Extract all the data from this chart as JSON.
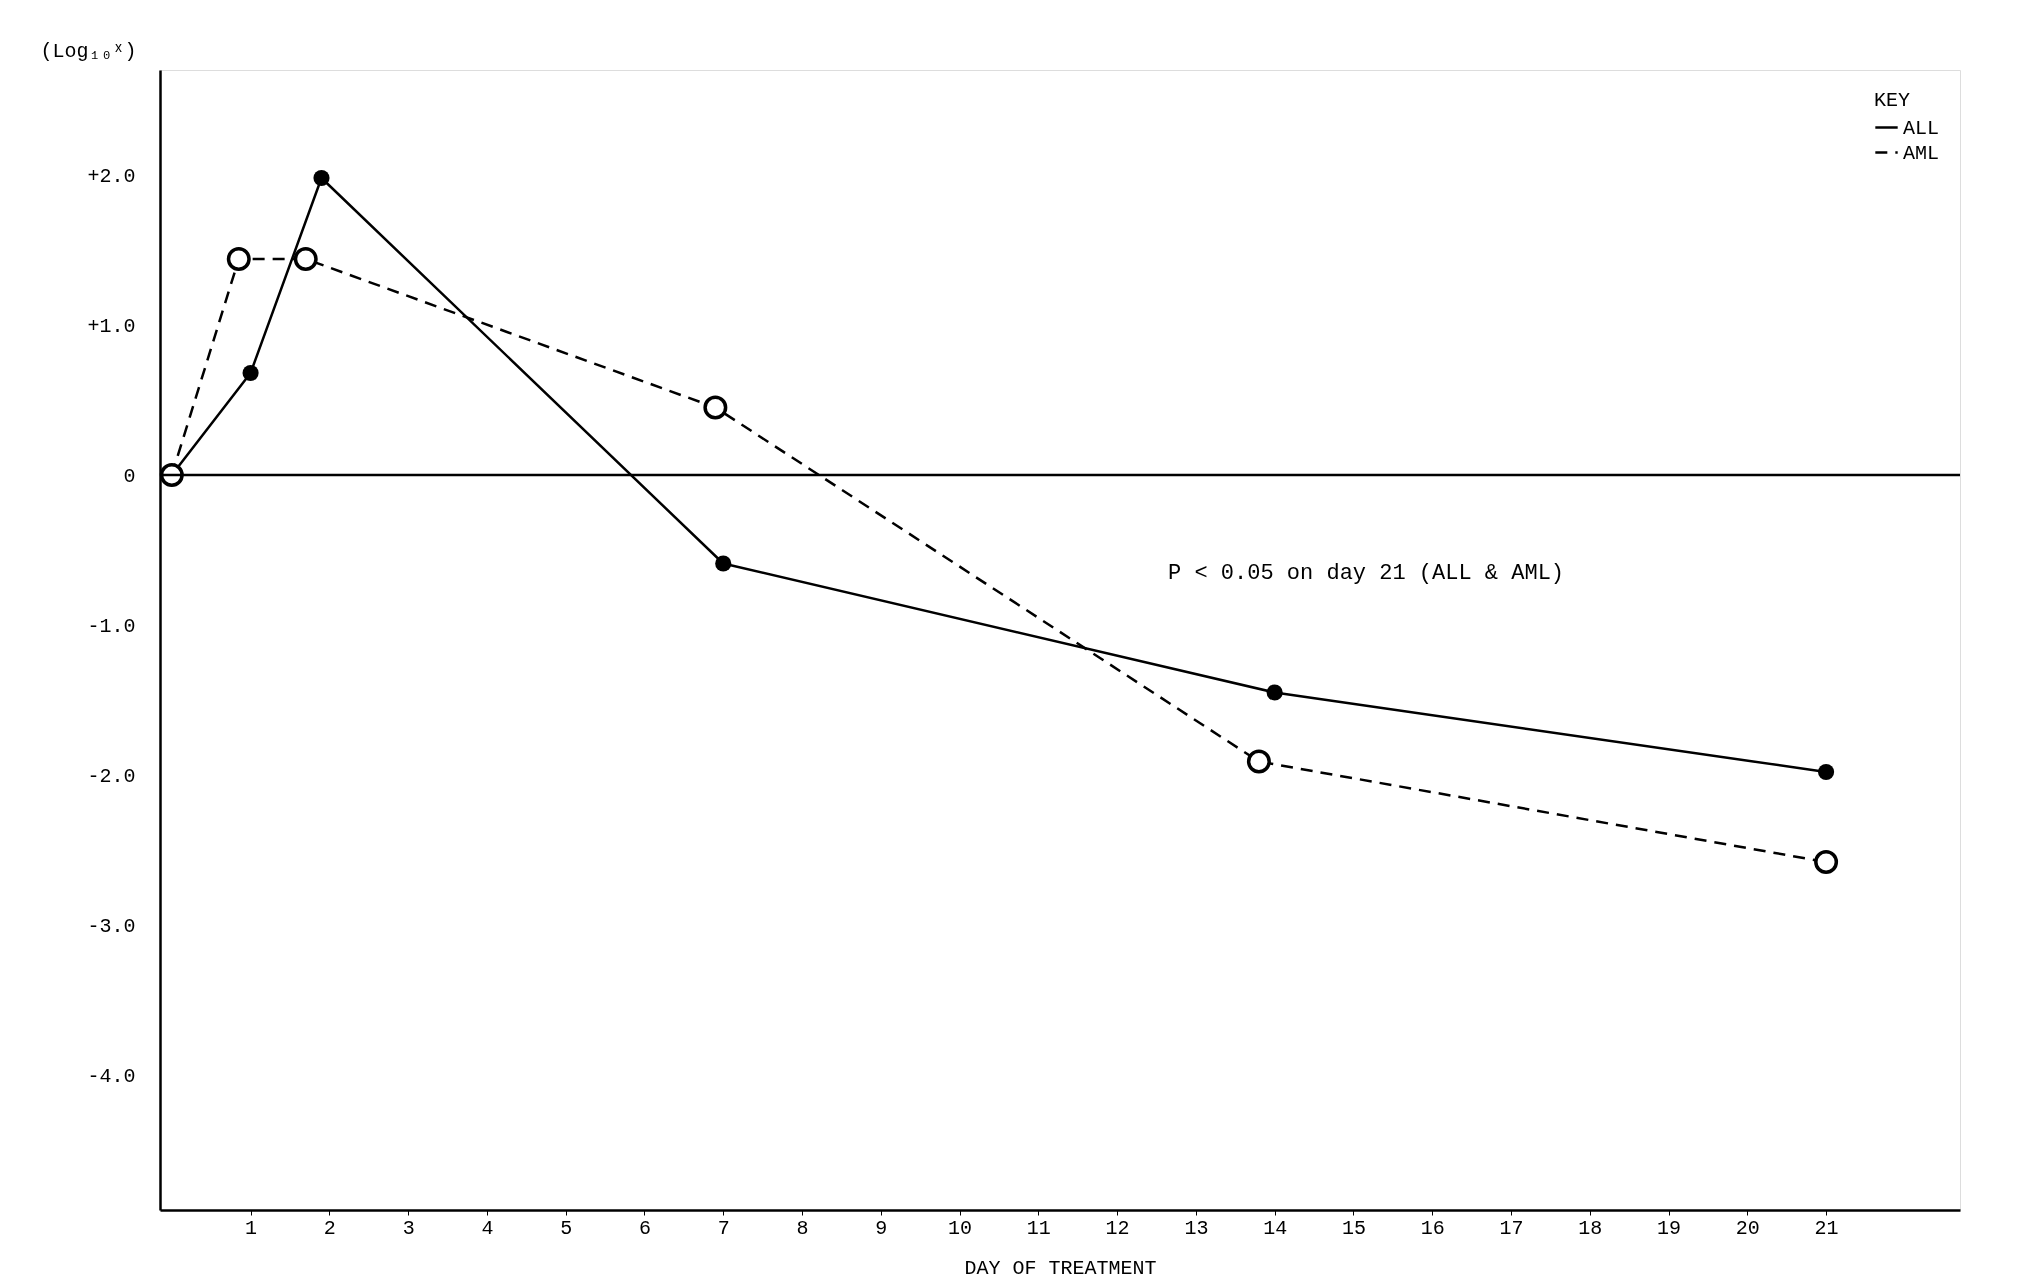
{
  "chart_data": {
    "type": "line",
    "xlabel": "DAY OF TREATMENT",
    "ylabel": "(Log₁₀ˣ)",
    "legend_title": "KEY",
    "legend": "top right",
    "grid": false,
    "marker": "circle",
    "xlim": [
      -0.15,
      22.7
    ],
    "ylim": [
      -4.9,
      2.7
    ],
    "xticks": [
      1,
      2,
      3,
      4,
      5,
      6,
      7,
      8,
      9,
      10,
      11,
      12,
      13,
      14,
      15,
      16,
      17,
      18,
      19,
      20,
      21
    ],
    "yticks": [
      {
        "value": 2,
        "label": "+2.0"
      },
      {
        "value": 1,
        "label": "+1.0"
      },
      0,
      {
        "value": -1,
        "label": "-1.0"
      },
      {
        "value": -2,
        "label": "-2.0"
      },
      {
        "value": -3,
        "label": "-3.0"
      },
      {
        "value": -4,
        "label": "-4.0"
      }
    ],
    "series": [
      {
        "name": "ALL",
        "color": "#000000",
        "line_style": "solid",
        "x": [
          0,
          1,
          1.9,
          7,
          14,
          21
        ],
        "values": [
          0,
          0.68,
          1.98,
          -0.59,
          -1.45,
          -1.98
        ]
      },
      {
        "name": "AML",
        "color": "#000000",
        "line_style": "dashed",
        "x": [
          0,
          0.85,
          1.7,
          6.9,
          13.8,
          21
        ],
        "values": [
          0,
          1.44,
          1.44,
          0.45,
          -1.91,
          -2.58
        ]
      }
    ],
    "ref_lines": [
      {
        "axis": "y",
        "value": 0,
        "color": "#000000"
      }
    ],
    "annotations": [
      "P < 0.05 on day 21 (ALL & AML)"
    ]
  }
}
